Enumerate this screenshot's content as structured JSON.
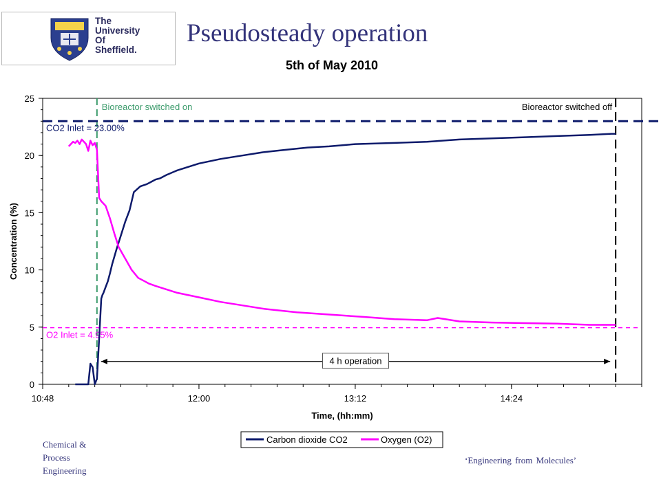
{
  "slide": {
    "logo_lines": [
      "The",
      "University",
      "Of",
      "Sheffield."
    ],
    "title": "Pseudosteady operation",
    "footer_left_lines": [
      "Chemical &",
      "Process",
      "Engineering"
    ],
    "footer_right": "‘Engineering from Molecules’"
  },
  "colors": {
    "co2": "#0d1a6b",
    "o2": "#ff00ff",
    "switch_on": "#3a9a6a",
    "switch_off": "#000000",
    "co2_inlet": "#0d1a6b",
    "o2_inlet": "#ff00ff",
    "title_text": "#33337a"
  },
  "chart_data": {
    "type": "line",
    "title": "5th of May 2010",
    "xlabel": "Time, (hh:mm)",
    "ylabel": "Concentration (%)",
    "xlim": [
      "10:48",
      "15:24"
    ],
    "ylim": [
      0,
      25
    ],
    "x_ticks": [
      "10:48",
      "12:00",
      "13:12",
      "14:24"
    ],
    "y_ticks": [
      0,
      5,
      10,
      15,
      20,
      25
    ],
    "grid": false,
    "legend_position": "bottom",
    "series": [
      {
        "name": "Carbon dioxide CO2",
        "x": [
          "11:03",
          "11:07",
          "11:09",
          "11:10",
          "11:11",
          "11:12",
          "11:13",
          "11:14",
          "11:15",
          "11:15:30",
          "11:16",
          "11:17",
          "11:18",
          "11:19",
          "11:20",
          "11:22",
          "11:24",
          "11:26",
          "11:28",
          "11:30",
          "11:33",
          "11:36",
          "11:38",
          "11:40",
          "11:42",
          "11:45",
          "11:50",
          "11:55",
          "12:00",
          "12:10",
          "12:20",
          "12:30",
          "12:40",
          "12:50",
          "13:00",
          "13:12",
          "13:30",
          "13:45",
          "14:00",
          "14:15",
          "14:30",
          "14:45",
          "15:00",
          "15:10",
          "15:12"
        ],
        "y": [
          0.0,
          0.0,
          0.0,
          1.8,
          1.5,
          0.0,
          0.5,
          4.0,
          7.5,
          7.8,
          8.0,
          8.5,
          9.0,
          9.7,
          10.5,
          11.8,
          13.0,
          14.2,
          15.2,
          16.8,
          17.3,
          17.5,
          17.7,
          17.9,
          18.0,
          18.3,
          18.7,
          19.0,
          19.3,
          19.7,
          20.0,
          20.3,
          20.5,
          20.7,
          20.8,
          21.0,
          21.1,
          21.2,
          21.4,
          21.5,
          21.6,
          21.7,
          21.8,
          21.9,
          21.9
        ]
      },
      {
        "name": "Oxygen (O2)",
        "x": [
          "11:00",
          "11:02",
          "11:03",
          "11:04",
          "11:05",
          "11:06",
          "11:07",
          "11:08",
          "11:09",
          "11:10",
          "11:11",
          "11:12",
          "11:13",
          "11:14",
          "11:15",
          "11:17",
          "11:19",
          "11:21",
          "11:23",
          "11:26",
          "11:29",
          "11:32",
          "11:35",
          "11:37",
          "11:40",
          "11:45",
          "11:50",
          "12:00",
          "12:10",
          "12:20",
          "12:30",
          "12:45",
          "13:00",
          "13:15",
          "13:30",
          "13:45",
          "13:50",
          "14:00",
          "14:15",
          "14:30",
          "14:45",
          "15:00",
          "15:12"
        ],
        "y": [
          20.8,
          21.2,
          21.1,
          21.3,
          21.0,
          21.4,
          21.2,
          21.0,
          20.4,
          21.3,
          20.9,
          21.1,
          20.5,
          16.3,
          16.0,
          15.6,
          14.5,
          13.2,
          12.0,
          11.0,
          10.0,
          9.3,
          9.0,
          8.8,
          8.6,
          8.3,
          8.0,
          7.6,
          7.2,
          6.9,
          6.6,
          6.3,
          6.1,
          5.9,
          5.7,
          5.6,
          5.8,
          5.5,
          5.4,
          5.35,
          5.3,
          5.2,
          5.2
        ]
      }
    ],
    "reference_lines": [
      {
        "label": "Bioreactor switched on",
        "x": "11:13"
      },
      {
        "label": "Bioreactor switched off",
        "x": "15:12"
      },
      {
        "label": "CO2 Inlet = 23.00%",
        "y": 23.0
      },
      {
        "label": "O2 Inlet = 4.95%",
        "y": 4.95
      }
    ],
    "annotations": [
      {
        "text": "4 h operation",
        "from": "11:13",
        "to": "15:12",
        "y": 2.0
      }
    ]
  }
}
